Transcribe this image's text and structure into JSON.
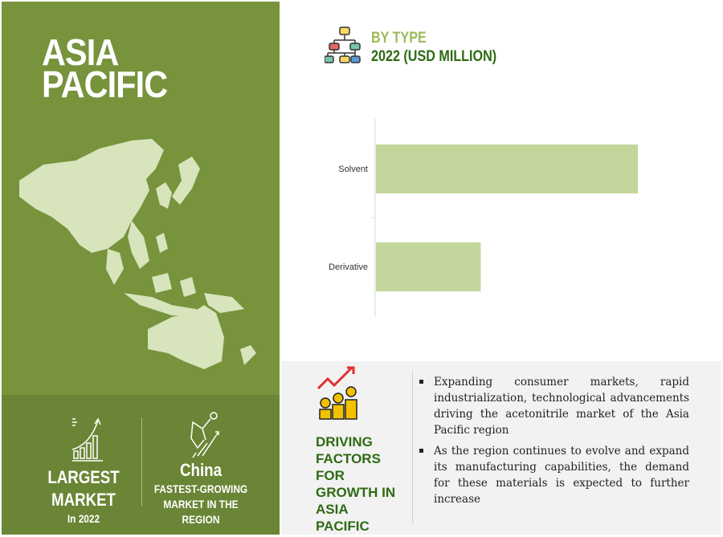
{
  "region": {
    "title_line1": "ASIA",
    "title_line2": "PACIFIC"
  },
  "stats": {
    "largest_1": "LARGEST",
    "largest_2": "MARKET",
    "largest_3": "In 2022",
    "country": "China",
    "fastest_1": "FASTEST-GROWING",
    "fastest_2": "MARKET IN THE",
    "fastest_3": "REGION"
  },
  "colors": {
    "panel": "#77933c",
    "panel_dark": "#6a8535",
    "map": "#d7e4bc",
    "bar": "#c3d69b",
    "accent_light": "#9bbb59",
    "accent_dark": "#2e6b14"
  },
  "chart_data": {
    "type": "bar",
    "orientation": "horizontal",
    "title": "BY TYPE",
    "subtitle": "2022 (USD MILLION)",
    "categories": [
      "Solvent",
      "Derivative"
    ],
    "values": [
      100,
      40
    ],
    "value_note_scale": "relative, no axis values printed",
    "grid": false
  },
  "drivers": {
    "title": "DRIVING FACTORS FOR GROWTH IN ASIA PACIFIC",
    "items": [
      "Expanding consumer markets, rapid industrialization, technological advancements driving the acetonitrile market of the Asia Pacific region",
      "As the region continues to evolve and expand its manufacturing capabilities, the demand for these materials is expected to further increase"
    ]
  }
}
